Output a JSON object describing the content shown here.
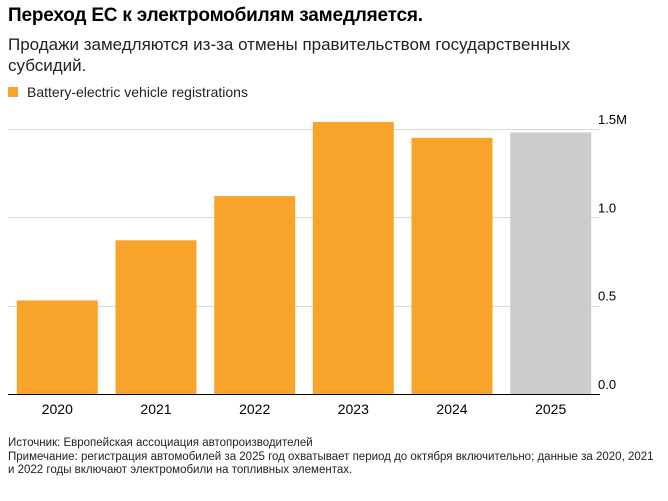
{
  "title": "Переход ЕС к электромобилям замедляется.",
  "subtitle": "Продажи замедляются из-за отмены правительством государственных субсидий.",
  "legend": {
    "label": "Battery-electric vehicle registrations",
    "color": "#f8a32a"
  },
  "footer": {
    "source": "Источник: Европейская ассоциация автопроизводителей",
    "note": "Примечание: регистрация автомобилей за 2025 год охватывает период до октября включительно; данные за 2020, 2021 и 2022 годы включают электромобили на топливных элементах."
  },
  "chart_data": {
    "type": "bar",
    "categories": [
      "2020",
      "2021",
      "2022",
      "2023",
      "2024",
      "2025"
    ],
    "values": [
      0.53,
      0.87,
      1.12,
      1.54,
      1.45,
      1.48
    ],
    "bar_colors": [
      "#f8a32a",
      "#f8a32a",
      "#f8a32a",
      "#f8a32a",
      "#f8a32a",
      "#cccccc"
    ],
    "ylim": [
      0,
      1.5
    ],
    "y_ticks": [
      0,
      0.5,
      1.0,
      1.5
    ],
    "y_tick_labels": [
      "0.0",
      "0.5",
      "1.0",
      "1.5M"
    ],
    "y_axis_side": "right",
    "grid": true,
    "legend_position": "top-left"
  }
}
